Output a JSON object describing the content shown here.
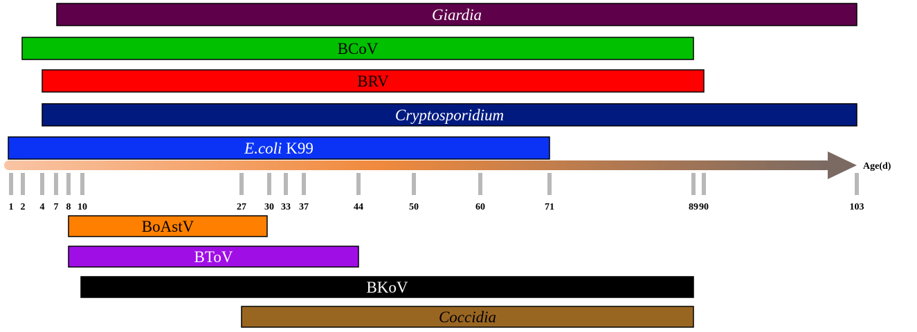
{
  "diagram": {
    "axis_label": "Age(d)",
    "ticks": [
      1,
      2,
      4,
      7,
      8,
      10,
      27,
      30,
      33,
      37,
      44,
      50,
      60,
      71,
      89,
      90,
      103
    ],
    "bars_above": [
      {
        "name": "Giardia",
        "italic": true,
        "start": 7,
        "end": 103,
        "color": "#5e004a",
        "text_color": "#ffffff",
        "label_parts": [
          {
            "text": "Giardia",
            "italic": true
          }
        ]
      },
      {
        "name": "BCoV",
        "italic": false,
        "start": 2,
        "end": 89,
        "color": "#00c000",
        "text_color": "#000000",
        "label_parts": [
          {
            "text": "BCoV",
            "italic": false
          }
        ]
      },
      {
        "name": "BRV",
        "italic": false,
        "start": 4,
        "end": 90,
        "color": "#ff0000",
        "text_color": "#000000",
        "label_parts": [
          {
            "text": "BRV",
            "italic": false
          }
        ]
      },
      {
        "name": "Cryptosporidium",
        "italic": true,
        "start": 4,
        "end": 103,
        "color": "#001a80",
        "text_color": "#ffffff",
        "label_parts": [
          {
            "text": "Cryptosporidium",
            "italic": true
          }
        ]
      },
      {
        "name": "E.coli K99",
        "italic": false,
        "start": 1,
        "end": 71,
        "color": "#0a33f5",
        "text_color": "#ffffff",
        "label_parts": [
          {
            "text": "E.coli",
            "italic": true
          },
          {
            "text": " K99",
            "italic": false
          }
        ]
      }
    ],
    "bars_below": [
      {
        "name": "BoAstV",
        "start": 8,
        "end": 30,
        "color": "#ff8000",
        "text_color": "#000000",
        "label_parts": [
          {
            "text": "BoAstV",
            "italic": false
          }
        ]
      },
      {
        "name": "BToV",
        "start": 8,
        "end": 44,
        "color": "#a00ee6",
        "text_color": "#ffffff",
        "label_parts": [
          {
            "text": "BToV",
            "italic": false
          }
        ]
      },
      {
        "name": "BKoV",
        "start": 10,
        "end": 89,
        "color": "#000000",
        "text_color": "#ffffff",
        "label_parts": [
          {
            "text": "BKoV",
            "italic": false
          }
        ]
      },
      {
        "name": "Coccidia",
        "start": 27,
        "end": 89,
        "color": "#996622",
        "text_color": "#000000",
        "label_parts": [
          {
            "text": "Coccidia",
            "italic": true
          }
        ]
      }
    ],
    "colors": {
      "arrow_start": "#f9c4a4",
      "arrow_mid": "#f08a3e",
      "arrow_end": "#7a6a62",
      "tick": "#b8b8b8",
      "outline": "#000000"
    }
  }
}
